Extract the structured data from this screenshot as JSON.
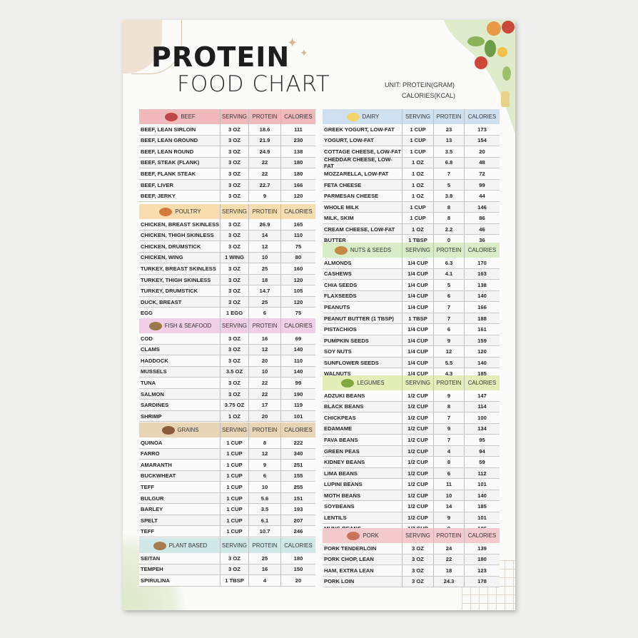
{
  "title": {
    "line1": "PROTEIN",
    "line2": "FOOD CHART"
  },
  "unit": {
    "line1": "UNIT: PROTEIN(GRAM)",
    "line2": "CALORIES(KCAL)"
  },
  "columns": {
    "serving": "SERVING",
    "protein": "PROTEIN",
    "calories": "CALORIES"
  },
  "sections": [
    {
      "name": "BEEF",
      "icon": "steak-icon",
      "color": "#f2b9bd",
      "iconColor": "#c0474a",
      "rows": [
        [
          "BEEF, LEAN SIRLOIN",
          "3 OZ",
          "18.6",
          "111"
        ],
        [
          "BEEF, LEAN GROUND",
          "3 OZ",
          "21.9",
          "230"
        ],
        [
          "BEEF, LEAN ROUND",
          "3 OZ",
          "24.9",
          "138"
        ],
        [
          "BEEF, STEAK (FLANK)",
          "3 OZ",
          "22",
          "180"
        ],
        [
          "BEEF, FLANK STEAK",
          "3 OZ",
          "22",
          "180"
        ],
        [
          "BEEF, LIVER",
          "3 OZ",
          "22.7",
          "166"
        ],
        [
          "BEEF, JERKY",
          "3 OZ",
          "9",
          "120"
        ]
      ]
    },
    {
      "name": "POULTRY",
      "icon": "roast-chicken-icon",
      "color": "#f8ddb0",
      "iconColor": "#d27a3b",
      "rows": [
        [
          "CHICKEN, BREAST SKINLESS",
          "3 OZ",
          "26.9",
          "165"
        ],
        [
          "CHICKEN, THIGH SKINLESS",
          "3 OZ",
          "14",
          "110"
        ],
        [
          "CHICKEN, DRUMSTICK",
          "3 OZ",
          "12",
          "75"
        ],
        [
          "CHICKEN, WING",
          "1 WING",
          "10",
          "80"
        ],
        [
          "TURKEY, BREAST SKINLESS",
          "3 OZ",
          "25",
          "160"
        ],
        [
          "TURKEY, THIGH SKINLESS",
          "3 OZ",
          "18",
          "120"
        ],
        [
          "TURKEY, DRUMSTICK",
          "3 OZ",
          "14.7",
          "105"
        ],
        [
          "DUCK, BREAST",
          "3 OZ",
          "25",
          "120"
        ],
        [
          "EGG",
          "1 EGG",
          "6",
          "75"
        ]
      ]
    },
    {
      "name": "FISH & SEAFOOD",
      "icon": "seafood-platter-icon",
      "color": "#f1cfe6",
      "iconColor": "#9a7a4a",
      "rows": [
        [
          "COD",
          "3 OZ",
          "16",
          "69"
        ],
        [
          "CLAMS",
          "3 OZ",
          "12",
          "140"
        ],
        [
          "HADDOCK",
          "3 OZ",
          "20",
          "110"
        ],
        [
          "MUSSELS",
          "3.5 OZ",
          "10",
          "140"
        ],
        [
          "TUNA",
          "3 OZ",
          "22",
          "99"
        ],
        [
          "SALMON",
          "3 OZ",
          "22",
          "190"
        ],
        [
          "SARDINES",
          "3.75 OZ",
          "17",
          "119"
        ],
        [
          "SHRIMP",
          "1 OZ",
          "20",
          "101"
        ]
      ]
    },
    {
      "name": "GRAINS",
      "icon": "grain-bowl-icon",
      "color": "#e8d5b6",
      "iconColor": "#8a5a3a",
      "rows": [
        [
          "QUINOA",
          "1 CUP",
          "8",
          "222"
        ],
        [
          "FARRO",
          "1 CUP",
          "12",
          "340"
        ],
        [
          "AMARANTH",
          "1 CUP",
          "9",
          "251"
        ],
        [
          "BUCKWHEAT",
          "1 CUP",
          "6",
          "155"
        ],
        [
          "TEFF",
          "1 CUP",
          "10",
          "255"
        ],
        [
          "BULGUR",
          "1 CUP",
          "5.6",
          "151"
        ],
        [
          "BARLEY",
          "1 CUP",
          "3.5",
          "193"
        ],
        [
          "SPELT",
          "1 CUP",
          "6.1",
          "207"
        ],
        [
          "TEFF",
          "1 CUP",
          "10.7",
          "246"
        ]
      ]
    },
    {
      "name": "PLANT BASED",
      "icon": "tofu-bowl-icon",
      "color": "#d0e9e7",
      "iconColor": "#a57a4c",
      "rows": [
        [
          "SEITAN",
          "3 OZ",
          "25",
          "180"
        ],
        [
          "TEMPEH",
          "3 OZ",
          "16",
          "150"
        ],
        [
          "SPIRULINA",
          "1 TBSP",
          "4",
          "20"
        ]
      ]
    },
    {
      "name": "DAIRY",
      "icon": "milk-bottle-icon",
      "color": "#cfe1f1",
      "iconColor": "#f1d46a",
      "rows": [
        [
          "GREEK YOGURT, LOW-FAT",
          "1 CUP",
          "23",
          "173"
        ],
        [
          "YOGURT, LOW-FAT",
          "1 CUP",
          "13",
          "154"
        ],
        [
          "COTTAGE CHEESE, LOW-FAT",
          "1 CUP",
          "3.5",
          "20"
        ],
        [
          "CHEDDAR CHEESE, LOW-FAT",
          "1 OZ",
          "6.8",
          "48"
        ],
        [
          "MOZZARELLA, LOW-FAT",
          "1 OZ",
          "7",
          "72"
        ],
        [
          "FETA CHEESE",
          "1 OZ",
          "5",
          "99"
        ],
        [
          "PARMESAN CHEESE",
          "1 OZ",
          "3.8",
          "44"
        ],
        [
          "WHOLE MILK",
          "1 CUP",
          "8",
          "146"
        ],
        [
          "MILK, SKIM",
          "1 CUP",
          "8",
          "86"
        ],
        [
          "CREAM CHEESE, LOW-FAT",
          "1 OZ",
          "2.2",
          "46"
        ],
        [
          "BUTTER",
          "1 TBSP",
          "0",
          "36"
        ]
      ]
    },
    {
      "name": "NUTS & SEEDS",
      "icon": "nuts-icon",
      "color": "#d8edc6",
      "iconColor": "#c48a45",
      "rows": [
        [
          "ALMONDS",
          "1/4 CUP",
          "6.3",
          "170"
        ],
        [
          "CASHEWS",
          "1/4 CUP",
          "4.1",
          "163"
        ],
        [
          "CHIA SEEDS",
          "1/4 CUP",
          "5",
          "138"
        ],
        [
          "FLAXSEEDS",
          "1/4 CUP",
          "6",
          "140"
        ],
        [
          "PEANUTS",
          "1/4 CUP",
          "7",
          "166"
        ],
        [
          "PEANUT BUTTER (1 TBSP)",
          "1 TBSP",
          "7",
          "188"
        ],
        [
          "PISTACHIOS",
          "1/4 CUP",
          "6",
          "161"
        ],
        [
          "PUMPKIN SEEDS",
          "1/4 CUP",
          "9",
          "159"
        ],
        [
          "SOY NUTS",
          "1/4 CUP",
          "12",
          "120"
        ],
        [
          "SUNFLOWER SEEDS",
          "1/4 CUP",
          "5.5",
          "140"
        ],
        [
          "WALNUTS",
          "1/4 CUP",
          "4.3",
          "185"
        ]
      ]
    },
    {
      "name": "LEGUMES",
      "icon": "bean-pods-icon",
      "color": "#e4eeb9",
      "iconColor": "#7fa83f",
      "rows": [
        [
          "ADZUKI BEANS",
          "1/2 CUP",
          "9",
          "147"
        ],
        [
          "BLACK BEANS",
          "1/2 CUP",
          "8",
          "114"
        ],
        [
          "CHICKPEAS",
          "1/2 CUP",
          "7",
          "100"
        ],
        [
          "EDAMAME",
          "1/2 CUP",
          "9",
          "134"
        ],
        [
          "FAVA BEANS",
          "1/2 CUP",
          "7",
          "95"
        ],
        [
          "GREEN PEAS",
          "1/2 CUP",
          "4",
          "94"
        ],
        [
          "KIDNEY BEANS",
          "1/2 CUP",
          "8",
          "59"
        ],
        [
          "LIMA BEANS",
          "1/2 CUP",
          "6",
          "112"
        ],
        [
          "LUPINI BEANS",
          "1/2 CUP",
          "11",
          "101"
        ],
        [
          "MOTH BEANS",
          "1/2 CUP",
          "10",
          "140"
        ],
        [
          "SOYBEANS",
          "1/2 CUP",
          "14",
          "185"
        ],
        [
          "LENTILS",
          "1/2 CUP",
          "9",
          "101"
        ],
        [
          "MUNG BEANS",
          "1/2 CUP",
          "9",
          "106"
        ]
      ]
    },
    {
      "name": "PORK",
      "icon": "ham-icon",
      "color": "#f4cacd",
      "iconColor": "#c9745a",
      "rows": [
        [
          "PORK TENDERLOIN",
          "3 OZ",
          "24",
          "139"
        ],
        [
          "PORK CHOP, LEAN",
          "3 OZ",
          "22",
          "180"
        ],
        [
          "HAM, EXTRA LEAN",
          "3 OZ",
          "18",
          "123"
        ],
        [
          "PORK LOIN",
          "3 OZ",
          "24.3",
          "178"
        ]
      ]
    }
  ]
}
